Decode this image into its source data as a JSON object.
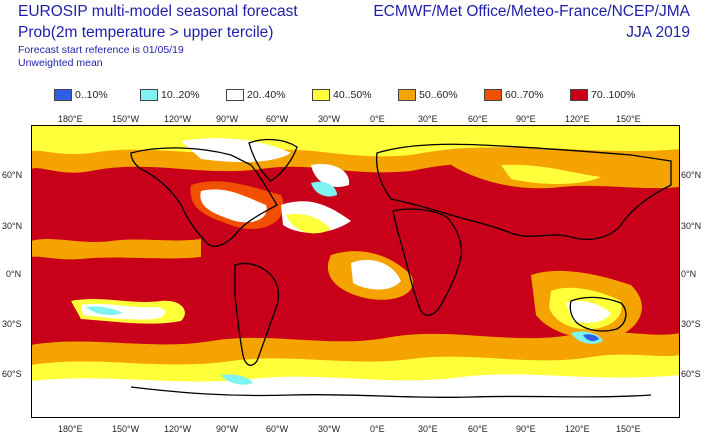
{
  "header": {
    "title_line1": "EUROSIP multi-model seasonal forecast",
    "title_line2": "Prob(2m temperature > upper tercile)",
    "subtitle_line1": "Forecast start reference is 01/05/19",
    "subtitle_line2": "Unweighted mean",
    "agencies": "ECMWF/Met Office/Meteo-France/NCEP/JMA",
    "season": "JJA 2019"
  },
  "legend": [
    {
      "label": "0..10%",
      "color": "#2f5fe6"
    },
    {
      "label": "10..20%",
      "color": "#7ff2f2"
    },
    {
      "label": "20..40%",
      "color": "#ffffff"
    },
    {
      "label": "40..50%",
      "color": "#ffff3a"
    },
    {
      "label": "50..60%",
      "color": "#f5a300"
    },
    {
      "label": "60..70%",
      "color": "#f05000"
    },
    {
      "label": "70..100%",
      "color": "#c8001a"
    }
  ],
  "axes": {
    "lon_labels": [
      "180°E",
      "150°W",
      "120°W",
      "90°W",
      "60°W",
      "30°W",
      "0°E",
      "30°E",
      "60°E",
      "90°E",
      "120°E",
      "150°E"
    ],
    "lat_labels": [
      "60°N",
      "30°N",
      "0°N",
      "30°S",
      "60°S"
    ]
  }
}
